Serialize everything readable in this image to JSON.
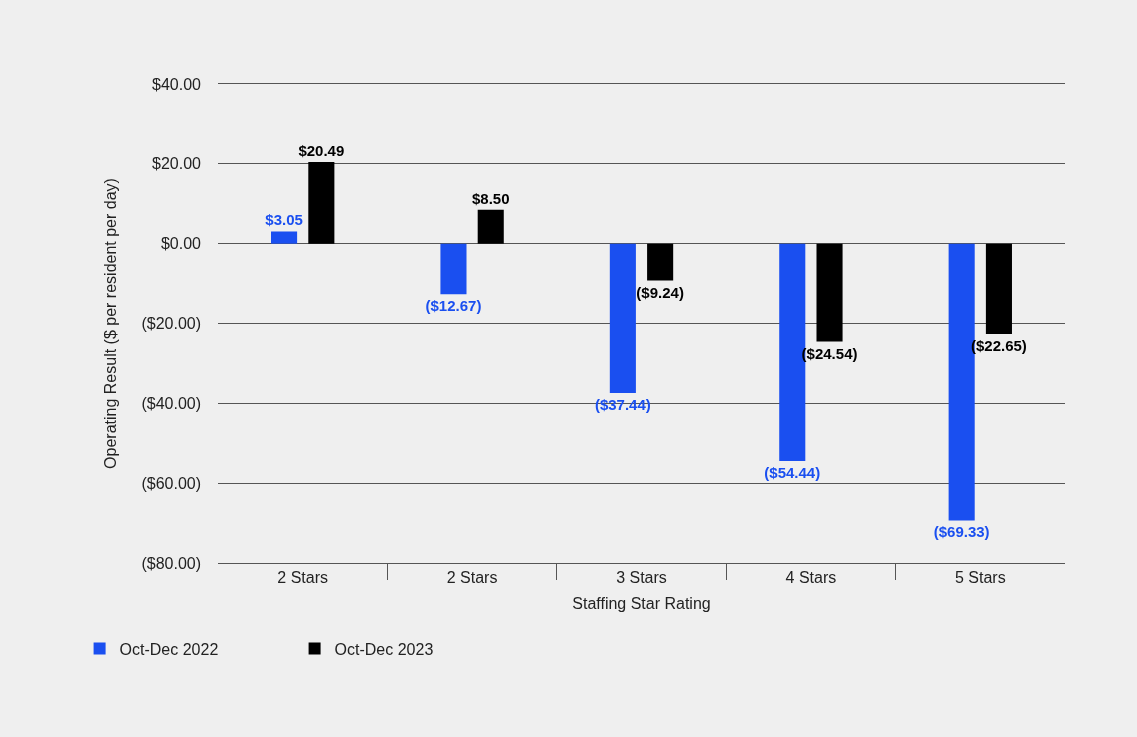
{
  "chart_data": {
    "type": "bar",
    "xlabel": "Staffing Star Rating",
    "ylabel": "Operating Result ($ per resident per day)",
    "categories": [
      "2 Stars",
      "2 Stars",
      "3 Stars",
      "4 Stars",
      "5 Stars"
    ],
    "series": [
      {
        "name": "Oct-Dec 2022",
        "color": "#1a4ff0",
        "values": [
          3.05,
          -12.67,
          -37.44,
          -54.44,
          -69.33
        ],
        "value_labels": [
          "$3.05",
          "($12.67)",
          "($37.44)",
          "($54.44)",
          "($69.33)"
        ]
      },
      {
        "name": "Oct-Dec 2023",
        "color": "#000000",
        "values": [
          20.49,
          8.5,
          -9.24,
          -24.54,
          -22.65
        ],
        "value_labels": [
          "$20.49",
          "$8.50",
          "($9.24)",
          "($24.54)",
          "($22.65)"
        ]
      }
    ],
    "ylim": [
      -80,
      40
    ],
    "yticks": [
      {
        "value": -80,
        "label": "($80.00)"
      },
      {
        "value": -60,
        "label": "($60.00)"
      },
      {
        "value": -40,
        "label": "($40.00)"
      },
      {
        "value": -20,
        "label": "($20.00)"
      },
      {
        "value": 0,
        "label": "$0.00"
      },
      {
        "value": 20,
        "label": "$20.00"
      },
      {
        "value": 40,
        "label": "$40.00"
      }
    ],
    "grid": "y",
    "legend": "bottom left"
  }
}
